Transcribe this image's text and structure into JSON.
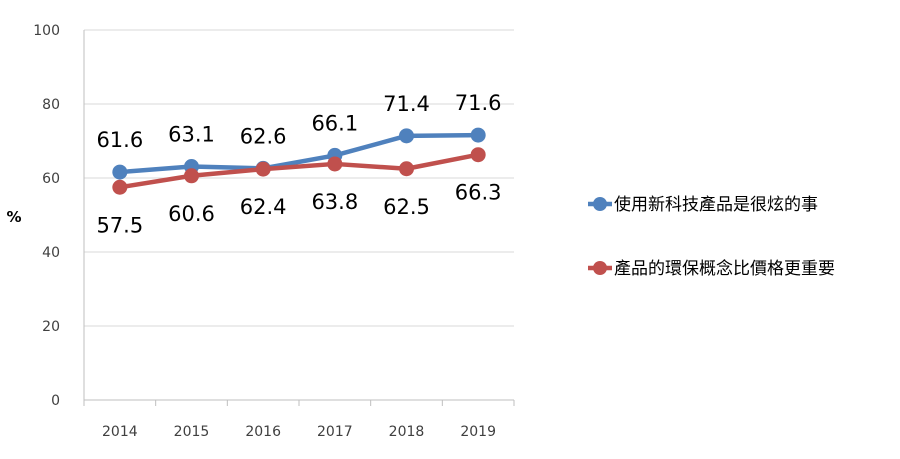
{
  "chart_data": {
    "type": "line",
    "categories": [
      "2014",
      "2015",
      "2016",
      "2017",
      "2018",
      "2019"
    ],
    "series": [
      {
        "name": "使用新科技產品是很炫的事",
        "color": "#4f81bd",
        "values": [
          61.6,
          63.1,
          62.6,
          66.1,
          71.4,
          71.6
        ],
        "labels": [
          "61.6",
          "63.1",
          "62.6",
          "66.1",
          "71.4",
          "71.6"
        ]
      },
      {
        "name": "產品的環保概念比價格更重要",
        "color": "#c0504d",
        "values": [
          57.5,
          60.6,
          62.4,
          63.8,
          62.5,
          66.3
        ],
        "labels": [
          "57.5",
          "60.6",
          "62.4",
          "63.8",
          "62.5",
          "66.3"
        ]
      }
    ],
    "ylabel": "%",
    "ylim": [
      0,
      100
    ],
    "yticks": [
      "0",
      "20",
      "40",
      "60",
      "80",
      "100"
    ],
    "grid": true,
    "legend": "right"
  }
}
